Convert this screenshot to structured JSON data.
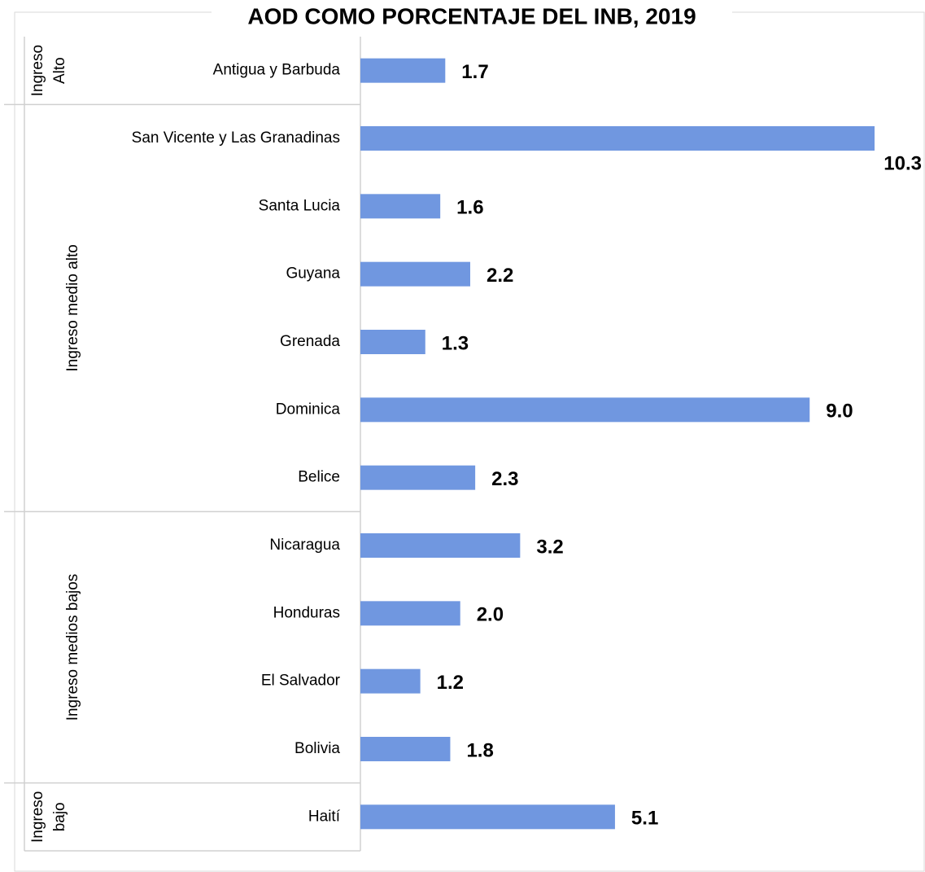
{
  "chart_data": {
    "type": "bar",
    "orientation": "horizontal",
    "title": "AOD COMO PORCENTAJE DEL INB, 2019",
    "color": "#7097e0",
    "xlim": [
      0,
      10.3
    ],
    "groups": [
      {
        "label": [
          "Ingreso",
          "Alto"
        ],
        "categories": [
          "Antigua y Barbuda"
        ],
        "values": [
          1.7
        ],
        "value_labels": [
          "1.7"
        ]
      },
      {
        "label": [
          "Ingreso medio alto"
        ],
        "categories": [
          "San Vicente y Las Granadinas",
          "Santa Lucia",
          "Guyana",
          "Grenada",
          "Dominica",
          "Belice"
        ],
        "values": [
          10.3,
          1.6,
          2.2,
          1.3,
          9.0,
          2.3
        ],
        "value_labels": [
          "10.3",
          "1.6",
          "2.2",
          "1.3",
          "9.0",
          "2.3"
        ]
      },
      {
        "label": [
          "Ingreso medios bajos"
        ],
        "categories": [
          "Nicaragua",
          "Honduras",
          "El Salvador",
          "Bolivia"
        ],
        "values": [
          3.2,
          2.0,
          1.2,
          1.8
        ],
        "value_labels": [
          "3.2",
          "2.0",
          "1.2",
          "1.8"
        ]
      },
      {
        "label": [
          "Ingreso",
          "bajo"
        ],
        "categories": [
          "Haití"
        ],
        "values": [
          5.1
        ],
        "value_labels": [
          "5.1"
        ]
      }
    ]
  }
}
